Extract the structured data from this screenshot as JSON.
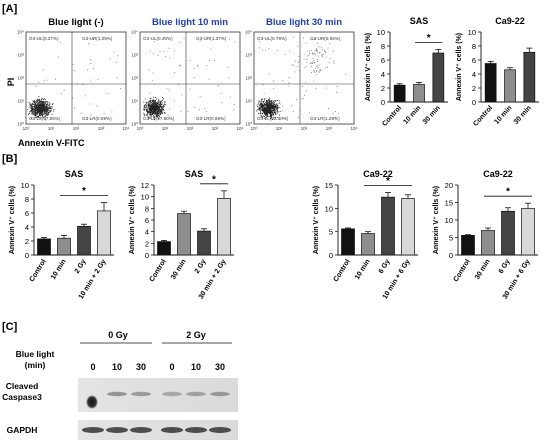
{
  "panels": {
    "A": {
      "label": "[A]",
      "y_axis": "PI",
      "x_axis": "Annexin V-FITC",
      "tick_labels": [
        "10⁰",
        "10¹",
        "10²",
        "10³",
        "10⁴"
      ],
      "plots": [
        {
          "title": "Blue light (-)",
          "title_color": "#000000",
          "quadrants": {
            "ul": "G3-UL(0.27%)",
            "ur": "G3-UR(1.29%)",
            "ll": "G3-LL(97.85%)",
            "lr": "G3-LR(0.59%)"
          }
        },
        {
          "title": "Blue light 10 min",
          "title_color": "#1f3fae",
          "quadrants": {
            "ul": "G3-UL(0.44%)",
            "ur": "G3-UR(1.37%)",
            "ll": "G3-LL(97.50%)",
            "lr": "G3-LR(0.69%)"
          }
        },
        {
          "title": "Blue light 30 min",
          "title_color": "#1f3fae",
          "quadrants": {
            "ul": "G3-UL(0.78%)",
            "ur": "G3-UR(5.65%)",
            "ll": "G3-LL(92.30%)",
            "lr": "G3-LR(1.29%)"
          }
        }
      ]
    },
    "B": {
      "label": "[B]"
    },
    "C": {
      "label": "[C]",
      "dose_labels": [
        "0 Gy",
        "2 Gy"
      ],
      "blue_light_label_1": "Blue light",
      "blue_light_label_2": "(min)",
      "time_labels": [
        "0",
        "10",
        "30",
        "0",
        "10",
        "30"
      ],
      "band1_label_1": "Cleaved",
      "band1_label_2": "Caspase3",
      "band2_label": "GAPDH"
    }
  },
  "colors": {
    "black": "#111111",
    "dark": "#444444",
    "mid": "#8e8e8e",
    "light": "#d8d8d8"
  },
  "chart_data": [
    {
      "id": "A-SAS",
      "type": "bar",
      "title": "SAS",
      "ylabel": "Annexin V⁺ cells (%)",
      "categories": [
        "Control",
        "10 min",
        "30 min"
      ],
      "values": [
        2.4,
        2.5,
        7.0
      ],
      "errors": [
        0.2,
        0.3,
        0.5
      ],
      "ylim": [
        0,
        10
      ],
      "ticks": [
        0,
        2,
        4,
        6,
        8,
        10
      ],
      "significance": [
        {
          "from": 1,
          "to": 2,
          "label": "*"
        }
      ]
    },
    {
      "id": "A-Ca9-22",
      "type": "bar",
      "title": "Ca9-22",
      "ylabel": "Annexin V⁺ cells (%)",
      "categories": [
        "Control",
        "10 min",
        "30 min"
      ],
      "values": [
        5.5,
        4.6,
        7.1
      ],
      "errors": [
        0.3,
        0.3,
        0.6
      ],
      "ylim": [
        0,
        10
      ],
      "ticks": [
        0,
        2,
        4,
        6,
        8,
        10
      ],
      "significance": []
    },
    {
      "id": "B-SAS-10",
      "type": "bar",
      "title": "SAS",
      "ylabel": "Annexin V⁺ cells (%)",
      "categories": [
        "Control",
        "10 min",
        "2 Gy",
        "10 min + 2 Gy"
      ],
      "values": [
        2.3,
        2.4,
        4.1,
        6.3
      ],
      "errors": [
        0.2,
        0.4,
        0.3,
        1.2
      ],
      "ylim": [
        0,
        10
      ],
      "ticks": [
        0,
        2,
        4,
        6,
        8,
        10
      ],
      "significance": [
        {
          "from": 1,
          "to": 3,
          "label": "*"
        }
      ]
    },
    {
      "id": "B-SAS-30",
      "type": "bar",
      "title": "SAS",
      "ylabel": "Annexin V⁺ cells (%)",
      "categories": [
        "Control",
        "30 min",
        "2 Gy",
        "30 min + 2 Gy"
      ],
      "values": [
        2.3,
        7.1,
        4.1,
        9.7
      ],
      "errors": [
        0.2,
        0.4,
        0.4,
        1.3
      ],
      "ylim": [
        0,
        12
      ],
      "ticks": [
        0,
        2,
        4,
        6,
        8,
        10,
        12
      ],
      "significance": [
        {
          "from": 2,
          "to": 3,
          "label": "*"
        }
      ]
    },
    {
      "id": "B-Ca9-22-10",
      "type": "bar",
      "title": "Ca9-22",
      "ylabel": "Annexin V⁺ cells (%)",
      "categories": [
        "Control",
        "10 min",
        "6 Gy",
        "10 min + 6 Gy"
      ],
      "values": [
        5.6,
        4.6,
        12.4,
        12.1
      ],
      "errors": [
        0.2,
        0.4,
        1.0,
        0.8
      ],
      "ylim": [
        0,
        15
      ],
      "ticks": [
        0,
        5,
        10,
        15
      ],
      "significance": [
        {
          "from": 1,
          "to": 3,
          "label": "*"
        }
      ]
    },
    {
      "id": "B-Ca9-22-30",
      "type": "bar",
      "title": "Ca9-22",
      "ylabel": "Annexin V⁺ cells (%)",
      "categories": [
        "Control",
        "30 min",
        "6 Gy",
        "30 min + 6 Gy"
      ],
      "values": [
        5.6,
        7.0,
        12.5,
        13.3
      ],
      "errors": [
        0.2,
        0.7,
        1.0,
        1.5
      ],
      "ylim": [
        0,
        20
      ],
      "ticks": [
        0,
        5,
        10,
        15,
        20
      ],
      "significance": [
        {
          "from": 1,
          "to": 3,
          "label": "*"
        }
      ]
    }
  ]
}
